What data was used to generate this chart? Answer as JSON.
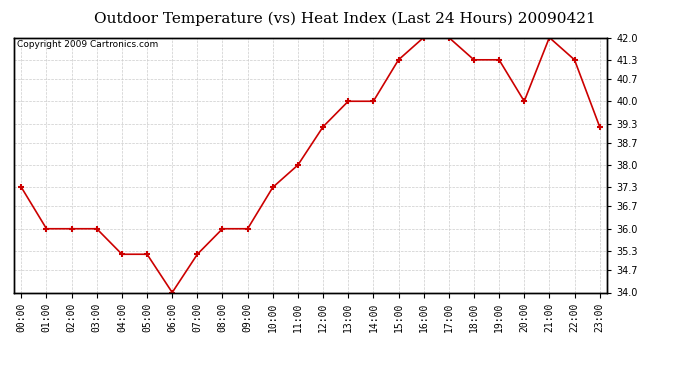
{
  "title": "Outdoor Temperature (vs) Heat Index (Last 24 Hours) 20090421",
  "copyright": "Copyright 2009 Cartronics.com",
  "x_labels": [
    "00:00",
    "01:00",
    "02:00",
    "03:00",
    "04:00",
    "05:00",
    "06:00",
    "07:00",
    "08:00",
    "09:00",
    "10:00",
    "11:00",
    "12:00",
    "13:00",
    "14:00",
    "15:00",
    "16:00",
    "17:00",
    "18:00",
    "19:00",
    "20:00",
    "21:00",
    "22:00",
    "23:00"
  ],
  "y_values": [
    37.3,
    36.0,
    36.0,
    36.0,
    35.2,
    35.2,
    34.0,
    35.2,
    36.0,
    36.0,
    37.3,
    38.0,
    39.2,
    40.0,
    40.0,
    41.3,
    42.0,
    42.0,
    41.3,
    41.3,
    40.0,
    42.0,
    41.3,
    39.2
  ],
  "line_color": "#cc0000",
  "marker": "+",
  "marker_size": 5,
  "marker_edge_width": 1.5,
  "line_width": 1.2,
  "background_color": "#ffffff",
  "plot_bg_color": "#ffffff",
  "grid_color": "#cccccc",
  "ylim_min": 34.0,
  "ylim_max": 42.0,
  "yticks": [
    34.0,
    34.7,
    35.3,
    36.0,
    36.7,
    37.3,
    38.0,
    38.7,
    39.3,
    40.0,
    40.7,
    41.3,
    42.0
  ],
  "ytick_labels": [
    "34.0",
    "34.7",
    "35.3",
    "36.0",
    "36.7",
    "37.3",
    "38.0",
    "38.7",
    "39.3",
    "40.0",
    "40.7",
    "41.3",
    "42.0"
  ],
  "title_fontsize": 11,
  "tick_fontsize": 7,
  "copyright_fontsize": 6.5
}
